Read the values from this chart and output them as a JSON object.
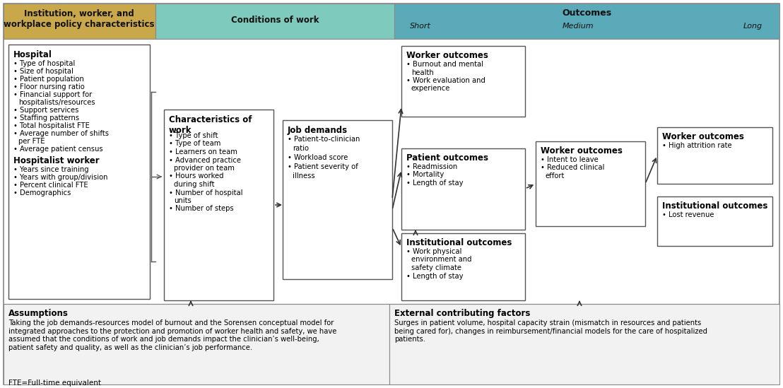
{
  "fig_width": 11.08,
  "fig_height": 5.49,
  "dpi": 100,
  "bg_color": "#ffffff",
  "header_yellow": "#C9A84C",
  "header_teal_light": "#7ECBBE",
  "header_teal": "#5AAAB9",
  "col1_header": "Institution, worker, and\nworkplace policy characteristics",
  "col2_header": "Conditions of work",
  "col3_header": "Outcomes",
  "col3_sub_short": "Short",
  "col3_sub_medium": "Medium",
  "col3_sub_long": "Long",
  "box_hospital_title": "Hospital",
  "box_hospital_items": [
    "Type of hospital",
    "Size of hospital",
    "Patient population",
    "Floor nursing ratio",
    "Financial support for\nhospitalists/resources",
    "Support services",
    "Staffing patterns",
    "Total hospitalist FTE",
    "Average number of shifts\nper FTE",
    "Average patient census"
  ],
  "box_hospitalist_title": "Hospitalist worker",
  "box_hospitalist_items": [
    "Years since training",
    "Years with group/division",
    "Percent clinical FTE",
    "Demographics"
  ],
  "box_conditions_title": "Characteristics of\nwork",
  "box_conditions_items": [
    "Type of shift",
    "Type of team",
    "Learners on team",
    "Advanced practice\nprovider on team",
    "Hours worked\nduring shift",
    "Number of hospital\nunits",
    "Number of steps"
  ],
  "box_job_title": "Job demands",
  "box_job_items": [
    "Patient-to-clinician\nratio",
    "Workload score",
    "Patient severity of\nillness"
  ],
  "box_worker_short_title": "Worker outcomes",
  "box_worker_short_items": [
    "Burnout and mental\nhealth",
    "Work evaluation and\nexperience"
  ],
  "box_patient_title": "Patient outcomes",
  "box_patient_items": [
    "Readmission",
    "Mortality",
    "Length of stay"
  ],
  "box_institutional_short_title": "Institutional outcomes",
  "box_institutional_short_items": [
    "Work physical\nenvironment and\nsafety climate",
    "Length of stay"
  ],
  "box_worker_medium_title": "Worker outcomes",
  "box_worker_medium_items": [
    "Intent to leave",
    "Reduced clinical\neffort"
  ],
  "box_worker_long_title": "Worker outcomes",
  "box_worker_long_items": [
    "High attrition rate"
  ],
  "box_institutional_long_title": "Institutional outcomes",
  "box_institutional_long_items": [
    "Lost revenue"
  ],
  "assumptions_title": "Assumptions",
  "assumptions_text": "Taking the job demands-resources model of burnout and the Sorensen conceptual model for\nintegrated approaches to the protection and promotion of worker health and safety, we have\nassumed that the conditions of work and job demands impact the clinician’s well-being,\npatient safety and quality, as well as the clinician’s job performance.",
  "external_title": "External contributing factors",
  "external_text": "Surges in patient volume, hospital capacity strain (mismatch in resources and patients\nbeing cared for), changes in reimbursement/financial models for the care of hospitalized\npatients.",
  "footer_text": "FTE=Full-time equivalent"
}
